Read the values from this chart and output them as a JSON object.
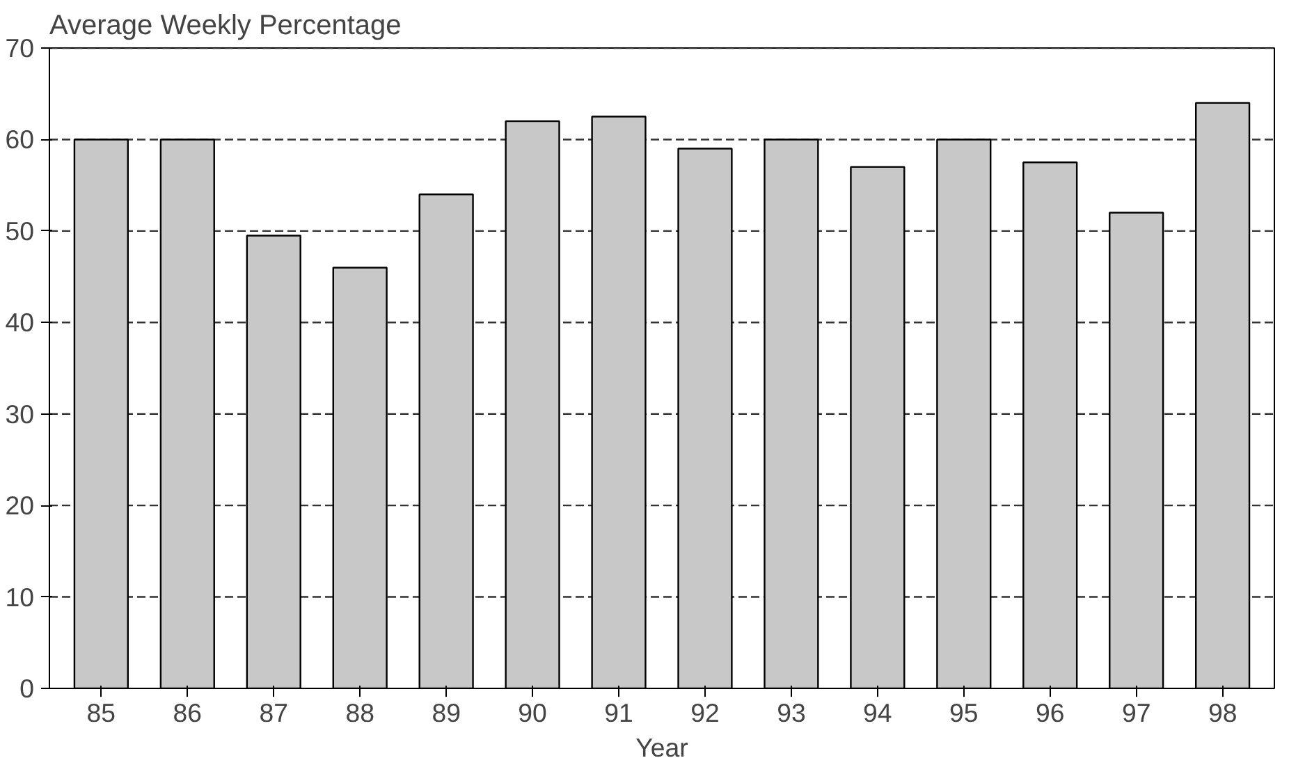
{
  "chart_data": {
    "type": "bar",
    "title": "Average Weekly Percentage",
    "xlabel": "Year",
    "categories": [
      "85",
      "86",
      "87",
      "88",
      "89",
      "90",
      "91",
      "92",
      "93",
      "94",
      "95",
      "96",
      "97",
      "98"
    ],
    "values": [
      60,
      60,
      49.5,
      46,
      54,
      62,
      62.5,
      59,
      60,
      57,
      60,
      57.5,
      52,
      64
    ],
    "color": "#c8c8c8",
    "ylim": [
      0,
      70
    ],
    "yticks": [
      0,
      10,
      20,
      30,
      40,
      50,
      60,
      70
    ],
    "grid": "y"
  }
}
